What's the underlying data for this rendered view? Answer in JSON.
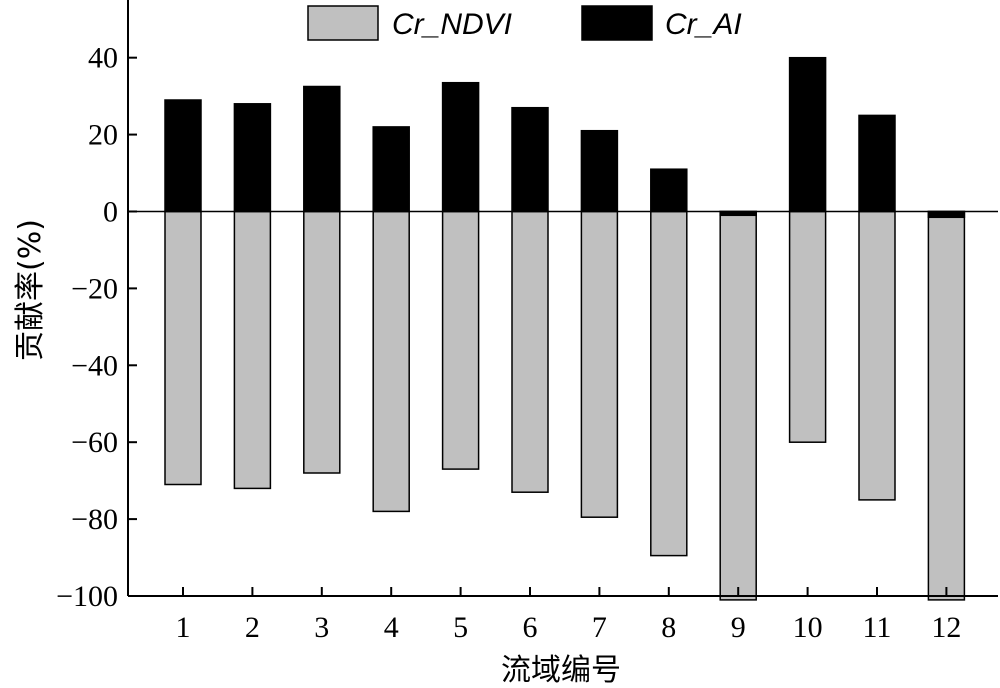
{
  "chart_data": {
    "type": "bar",
    "categories": [
      "1",
      "2",
      "3",
      "4",
      "5",
      "6",
      "7",
      "8",
      "9",
      "10",
      "11",
      "12"
    ],
    "series": [
      {
        "name": "Cr_NDVI",
        "color": "#c0c0c0",
        "values": [
          -71,
          -72,
          -68,
          -78,
          -67,
          -73,
          -79.5,
          -89.5,
          -101,
          -60,
          -75,
          -101
        ]
      },
      {
        "name": "Cr_AI",
        "color": "#000000",
        "values": [
          29,
          28,
          32.5,
          22,
          33.5,
          27,
          21,
          11,
          -1,
          40,
          25,
          -1.5
        ]
      }
    ],
    "xlabel": "流域编号",
    "ylabel": "贡献率(%)",
    "ylim": [
      -100,
      55
    ],
    "yticks": [
      40,
      20,
      0,
      -20,
      -40,
      -60,
      -80,
      -100
    ],
    "ytick_labels": [
      "40",
      "20",
      "0",
      "−20",
      "−40",
      "−60",
      "−80",
      "−100"
    ],
    "legend_position": "top",
    "grid": false
  }
}
